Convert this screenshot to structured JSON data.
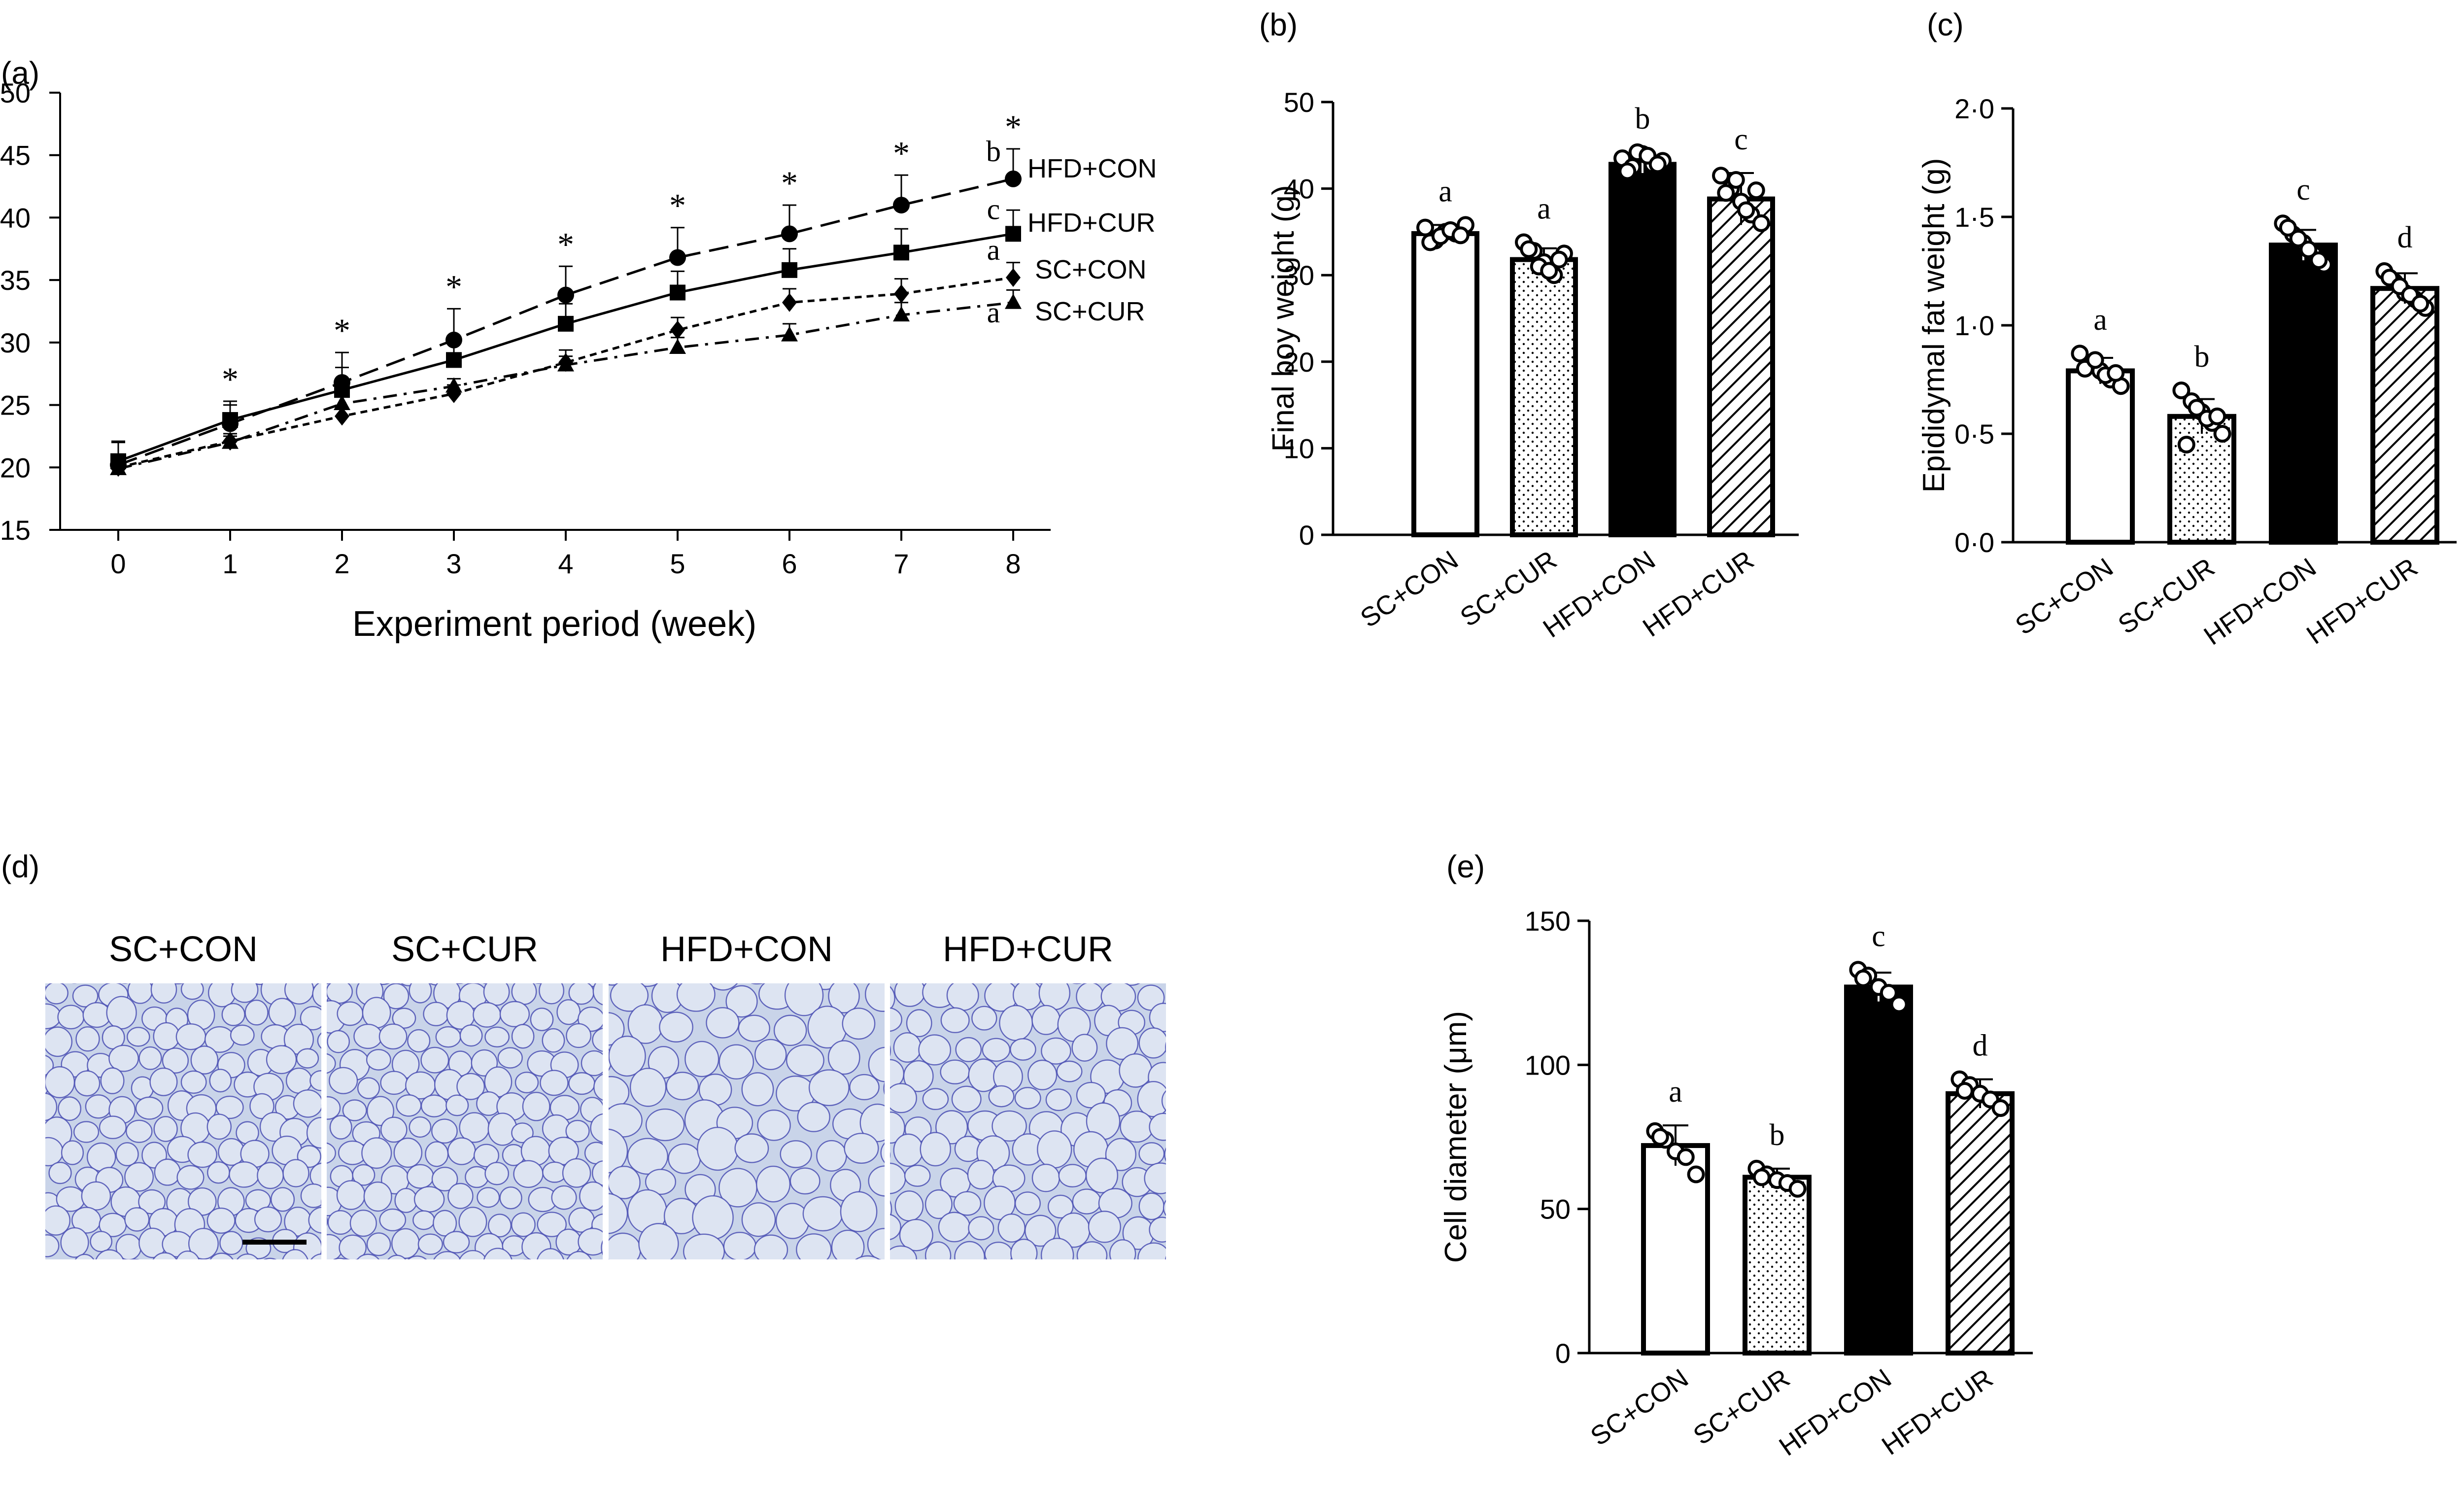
{
  "panels": {
    "a": {
      "label": "(a)"
    },
    "b": {
      "label": "(b)"
    },
    "c": {
      "label": "(c)"
    },
    "d": {
      "label": "(d)"
    },
    "e": {
      "label": "(e)"
    }
  },
  "colors": {
    "axis": "#000000",
    "bar_white": "#ffffff",
    "bar_dotted": "#ffffff",
    "bar_black": "#000000",
    "bar_hatched": "#ffffff",
    "histology_bg": "#c9d4e9",
    "histology_membrane": "#4a4fb3"
  },
  "chart_data": [
    {
      "id": "a",
      "type": "line",
      "title": "",
      "xlabel": "Experiment period (week)",
      "ylabel": "",
      "x": [
        0,
        1,
        2,
        3,
        4,
        5,
        6,
        7,
        8
      ],
      "xticks": [
        "0",
        "1",
        "2",
        "3",
        "4",
        "5",
        "6",
        "7",
        "8"
      ],
      "ylim": [
        15,
        50
      ],
      "yticks": [
        "15",
        "20",
        "25",
        "30",
        "35",
        "40",
        "45",
        "50"
      ],
      "grid": false,
      "series": [
        {
          "name": "HFD+CON",
          "marker": "circle",
          "dash": "long-dash",
          "values": [
            20.2,
            23.5,
            26.8,
            30.2,
            33.8,
            36.8,
            38.7,
            41.0,
            43.1
          ],
          "errors": [
            1.8,
            1.5,
            2.4,
            2.5,
            2.3,
            2.4,
            2.3,
            2.4,
            2.4
          ],
          "letter": "b"
        },
        {
          "name": "HFD+CUR",
          "marker": "square",
          "dash": "solid",
          "values": [
            20.5,
            23.8,
            26.2,
            28.6,
            31.5,
            34.0,
            35.8,
            37.2,
            38.7
          ],
          "errors": [
            1.6,
            1.5,
            1.8,
            1.8,
            1.6,
            1.7,
            1.7,
            1.9,
            1.9
          ],
          "letter": "c"
        },
        {
          "name": "SC+CON",
          "marker": "diamond",
          "dash": "short-dash",
          "values": [
            20.0,
            22.1,
            24.1,
            25.9,
            28.4,
            31.0,
            33.2,
            33.9,
            35.2
          ],
          "errors": [
            0.5,
            0.6,
            0.6,
            0.7,
            1.0,
            1.0,
            1.1,
            1.2,
            1.2
          ],
          "letter": "a"
        },
        {
          "name": "SC+CUR",
          "marker": "triangle",
          "dash": "dash-dot",
          "values": [
            19.9,
            22.0,
            25.1,
            26.5,
            28.2,
            29.6,
            30.6,
            32.2,
            33.2
          ],
          "errors": [
            0.4,
            0.5,
            0.6,
            0.6,
            0.7,
            0.8,
            0.9,
            1.0,
            1.0
          ],
          "letter": "a"
        }
      ],
      "significance": [
        "",
        "*",
        "*",
        "*",
        "*",
        "*",
        "*",
        "*",
        "*"
      ]
    },
    {
      "id": "b",
      "type": "bar",
      "title": "",
      "xlabel": "",
      "ylabel": "Final boy weight (g)",
      "categories": [
        "SC+CON",
        "SC+CUR",
        "HFD+CON",
        "HFD+CUR"
      ],
      "values": [
        34.8,
        31.8,
        42.8,
        38.8
      ],
      "errors": [
        1.0,
        1.3,
        1.0,
        3.0
      ],
      "letters": [
        "a",
        "a",
        "b",
        "c"
      ],
      "fills": [
        "white",
        "dotted",
        "black",
        "hatched"
      ],
      "ylim": [
        0,
        50
      ],
      "yticks": [
        "0",
        "10",
        "20",
        "30",
        "40",
        "50"
      ],
      "points": [
        [
          35.5,
          34.0,
          35.0,
          34.8,
          35.8,
          33.8,
          34.5,
          35.2,
          34.6
        ],
        [
          33.8,
          32.8,
          31.5,
          30.0,
          32.5,
          33.0,
          31.0,
          30.5,
          31.8
        ],
        [
          43.5,
          42.5,
          44.0,
          42.8,
          43.2,
          42.0,
          44.2,
          43.8,
          42.8
        ],
        [
          41.5,
          40.0,
          38.5,
          37.0,
          36.0,
          39.5,
          41.0,
          37.5,
          39.8
        ]
      ]
    },
    {
      "id": "c",
      "type": "bar",
      "title": "",
      "xlabel": "",
      "ylabel": "Epididymal fat weight (g)",
      "categories": [
        "SC+CON",
        "SC+CUR",
        "HFD+CON",
        "HFD+CUR"
      ],
      "values": [
        0.79,
        0.58,
        1.37,
        1.17
      ],
      "errors": [
        0.06,
        0.08,
        0.07,
        0.07
      ],
      "letters": [
        "a",
        "b",
        "c",
        "d"
      ],
      "fills": [
        "white",
        "dotted",
        "black",
        "hatched"
      ],
      "ylim": [
        0,
        2.0
      ],
      "yticks": [
        "0·0",
        "0·5",
        "1·0",
        "1·5",
        "2·0"
      ],
      "points": [
        [
          0.87,
          0.82,
          0.79,
          0.75,
          0.72,
          0.8,
          0.84,
          0.77,
          0.78
        ],
        [
          0.7,
          0.65,
          0.6,
          0.55,
          0.5,
          0.45,
          0.62,
          0.57,
          0.58
        ],
        [
          1.47,
          1.42,
          1.38,
          1.33,
          1.28,
          1.45,
          1.4,
          1.35,
          1.3
        ],
        [
          1.25,
          1.2,
          1.15,
          1.12,
          1.08,
          1.22,
          1.18,
          1.14,
          1.1
        ]
      ]
    },
    {
      "id": "e",
      "type": "bar",
      "title": "",
      "xlabel": "",
      "ylabel": "Cell diameter (μm)",
      "categories": [
        "SC+CON",
        "SC+CUR",
        "HFD+CON",
        "HFD+CUR"
      ],
      "values": [
        72,
        61,
        127,
        90
      ],
      "errors": [
        7,
        3,
        5,
        5
      ],
      "letters": [
        "a",
        "b",
        "c",
        "d"
      ],
      "fills": [
        "white",
        "dotted",
        "black",
        "hatched"
      ],
      "ylim": [
        0,
        150
      ],
      "yticks": [
        "0",
        "50",
        "100",
        "150"
      ],
      "points": [
        [
          77,
          74,
          70,
          68,
          62,
          75
        ],
        [
          64,
          62,
          60,
          59,
          57,
          61
        ],
        [
          133,
          131,
          127,
          125,
          121,
          130
        ],
        [
          95,
          93,
          90,
          88,
          85,
          91
        ]
      ]
    }
  ],
  "histology": {
    "scale_bar": true,
    "images": [
      {
        "label": "SC+CON",
        "seed": 11,
        "cell_size": "small"
      },
      {
        "label": "SC+CUR",
        "seed": 23,
        "cell_size": "small"
      },
      {
        "label": "HFD+CON",
        "seed": 37,
        "cell_size": "large"
      },
      {
        "label": "HFD+CUR",
        "seed": 51,
        "cell_size": "medium"
      }
    ]
  }
}
